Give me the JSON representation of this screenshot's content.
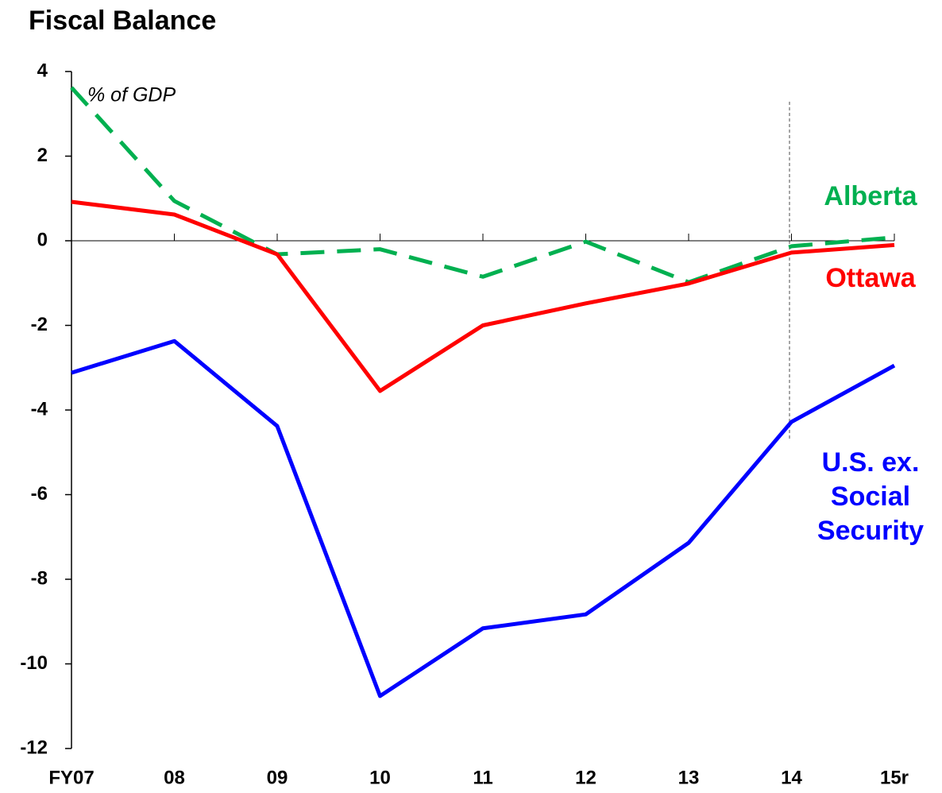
{
  "chart_data": {
    "type": "line",
    "title": "Fiscal Balance",
    "annotation": "% of GDP",
    "categories": [
      "FY07",
      "08",
      "09",
      "10",
      "11",
      "12",
      "13",
      "14",
      "15r"
    ],
    "series": [
      {
        "name": "Alberta",
        "color": "#00b050",
        "dashed": true,
        "values": [
          3.62,
          0.94,
          -0.32,
          -0.2,
          -0.85,
          -0.02,
          -0.98,
          -0.13,
          0.08
        ]
      },
      {
        "name": "Ottawa",
        "color": "#ff0000",
        "dashed": false,
        "values": [
          0.92,
          0.62,
          -0.32,
          -3.55,
          -2.0,
          -1.48,
          -1.01,
          -0.28,
          -0.1
        ]
      },
      {
        "name": "U.S. ex. Social Security",
        "color": "#0000ff",
        "dashed": false,
        "values": [
          -3.12,
          -2.37,
          -4.38,
          -10.76,
          -9.16,
          -8.83,
          -7.14,
          -4.28,
          -2.95
        ]
      }
    ],
    "ylim": [
      -12,
      4
    ],
    "yticks": [
      -12,
      -10,
      -8,
      -6,
      -4,
      -2,
      0,
      2,
      4
    ]
  }
}
